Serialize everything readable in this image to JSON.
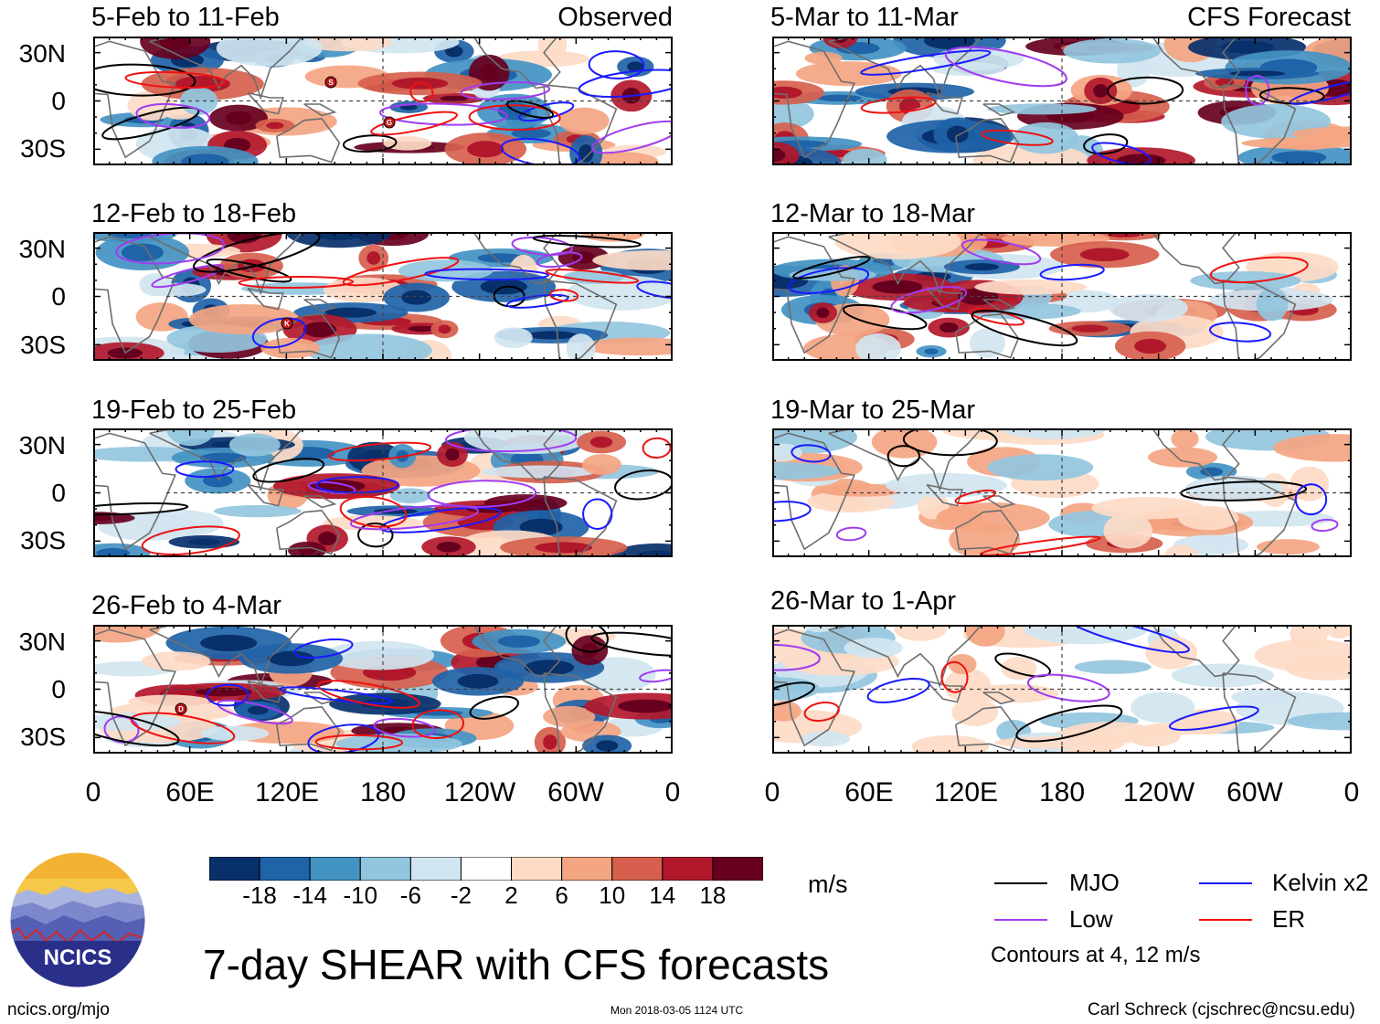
{
  "header": {
    "observed_label": "Observed",
    "forecast_label": "CFS Forecast"
  },
  "panels": [
    {
      "title": "5-Feb to 11-Feb",
      "kind": "observed"
    },
    {
      "title": "12-Feb to 18-Feb",
      "kind": "observed"
    },
    {
      "title": "19-Feb to 25-Feb",
      "kind": "observed"
    },
    {
      "title": "26-Feb to 4-Mar",
      "kind": "observed"
    },
    {
      "title": "5-Mar to 11-Mar",
      "kind": "forecast"
    },
    {
      "title": "12-Mar to 18-Mar",
      "kind": "forecast"
    },
    {
      "title": "19-Mar to 25-Mar",
      "kind": "forecast"
    },
    {
      "title": "26-Mar to 1-Apr",
      "kind": "forecast"
    }
  ],
  "axes": {
    "lat_labels": [
      "30N",
      "0",
      "30S"
    ],
    "lon_labels": [
      "0",
      "60E",
      "120E",
      "180",
      "120W",
      "60W",
      "0"
    ]
  },
  "storm_markers": [
    {
      "panel": 0,
      "letter": "S"
    },
    {
      "panel": 0,
      "letter": "G"
    },
    {
      "panel": 1,
      "letter": "K"
    },
    {
      "panel": 3,
      "letter": "D"
    }
  ],
  "colorbar": {
    "colors": [
      "#08306b",
      "#1f63a8",
      "#4393c3",
      "#92c5de",
      "#d1e5f0",
      "#ffffff",
      "#fddbc7",
      "#f4a582",
      "#d6604d",
      "#b2182b",
      "#67001f"
    ],
    "tick_labels": [
      "-18",
      "-14",
      "-10",
      "-6",
      "-2",
      "2",
      "6",
      "10",
      "14",
      "18"
    ],
    "units": "m/s"
  },
  "legend": {
    "items": [
      {
        "label": "MJO",
        "color": "#000000"
      },
      {
        "label": "Kelvin x2",
        "color": "#1a1aff"
      },
      {
        "label": "Low",
        "color": "#a03cf0"
      },
      {
        "label": "ER",
        "color": "#ee1111"
      }
    ],
    "note": "Contours at 4, 12 m/s"
  },
  "logo": {
    "text": "NCICS"
  },
  "title": "7-day SHEAR with CFS forecasts",
  "footer": {
    "url": "ncics.org/mjo",
    "timestamp": "Mon 2018-03-05 1124 UTC",
    "credit": "Carl Schreck (cjschrec@ncsu.edu)"
  }
}
